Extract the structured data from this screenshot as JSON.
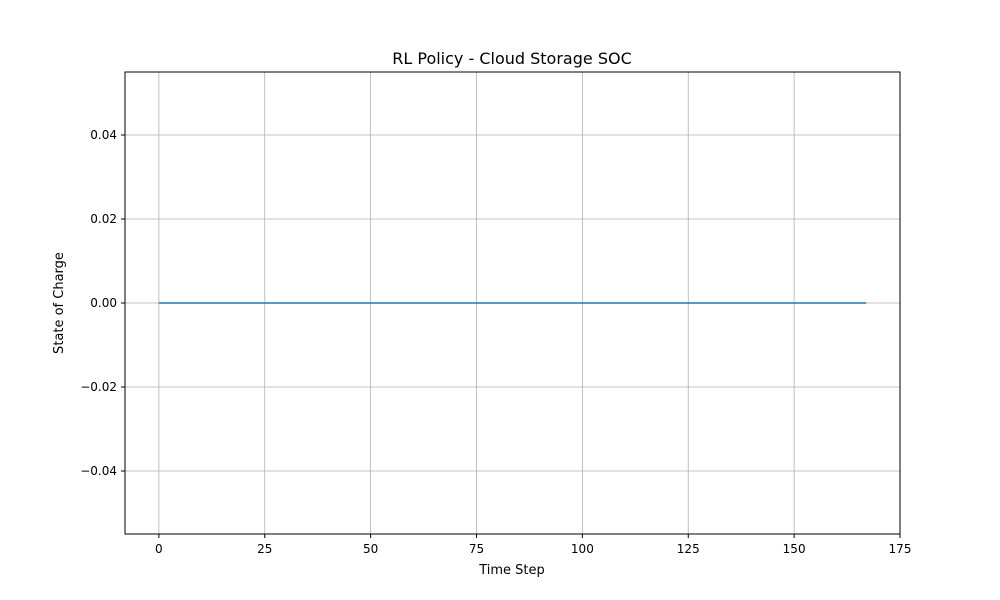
{
  "chart_data": {
    "type": "line",
    "title": "RL Policy - Cloud Storage SOC",
    "xlabel": "Time Step",
    "ylabel": "State of Charge",
    "xlim": [
      -8,
      175
    ],
    "ylim": [
      -0.055,
      0.055
    ],
    "xticks": [
      0,
      25,
      50,
      75,
      100,
      125,
      150,
      175
    ],
    "xtick_labels": [
      "0",
      "25",
      "50",
      "75",
      "100",
      "125",
      "150",
      "175"
    ],
    "yticks": [
      -0.04,
      -0.02,
      0.0,
      0.02,
      0.04
    ],
    "ytick_labels": [
      "−0.04",
      "−0.02",
      "0.00",
      "0.02",
      "0.04"
    ],
    "grid": true,
    "series": [
      {
        "color": "#1f77b4",
        "x": [
          0,
          167
        ],
        "y": [
          0.0,
          0.0
        ]
      }
    ]
  }
}
